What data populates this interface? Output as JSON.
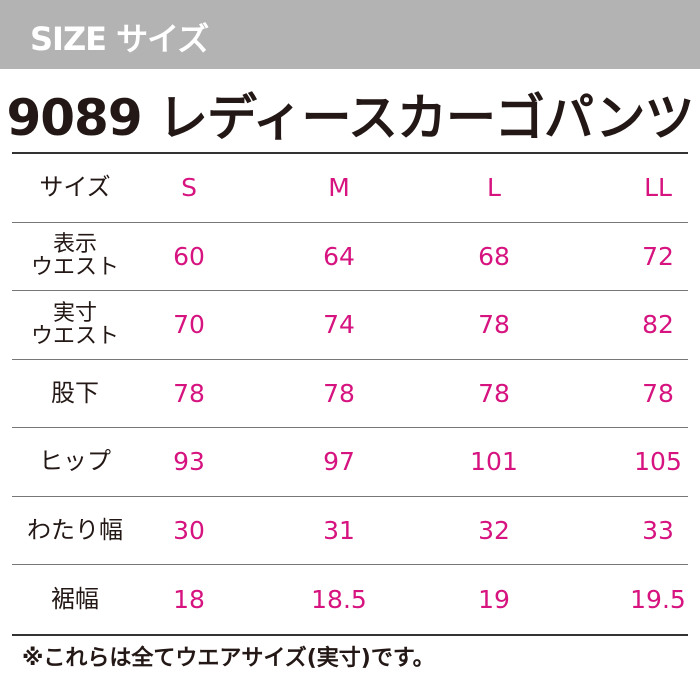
{
  "banner": {
    "label": "SIZE サイズ"
  },
  "title": "9089 レディースカーゴパンツ",
  "colors": {
    "banner": "#b3b3b3",
    "value": "#d6137f",
    "text": "#231815"
  },
  "table": {
    "header": {
      "label": "サイズ",
      "sizes": [
        "S",
        "M",
        "L",
        "LL"
      ]
    },
    "rows": [
      {
        "label": "表示\nウエスト",
        "values": [
          "60",
          "64",
          "68",
          "72"
        ]
      },
      {
        "label": "実寸\nウエスト",
        "values": [
          "70",
          "74",
          "78",
          "82"
        ]
      },
      {
        "label": "股下",
        "values": [
          "78",
          "78",
          "78",
          "78"
        ]
      },
      {
        "label": "ヒップ",
        "values": [
          "93",
          "97",
          "101",
          "105"
        ]
      },
      {
        "label": "わたり幅",
        "values": [
          "30",
          "31",
          "32",
          "33"
        ]
      },
      {
        "label": "裾幅",
        "values": [
          "18",
          "18.5",
          "19",
          "19.5"
        ]
      }
    ]
  },
  "note": "※これらは全てウエアサイズ(実寸)です。"
}
